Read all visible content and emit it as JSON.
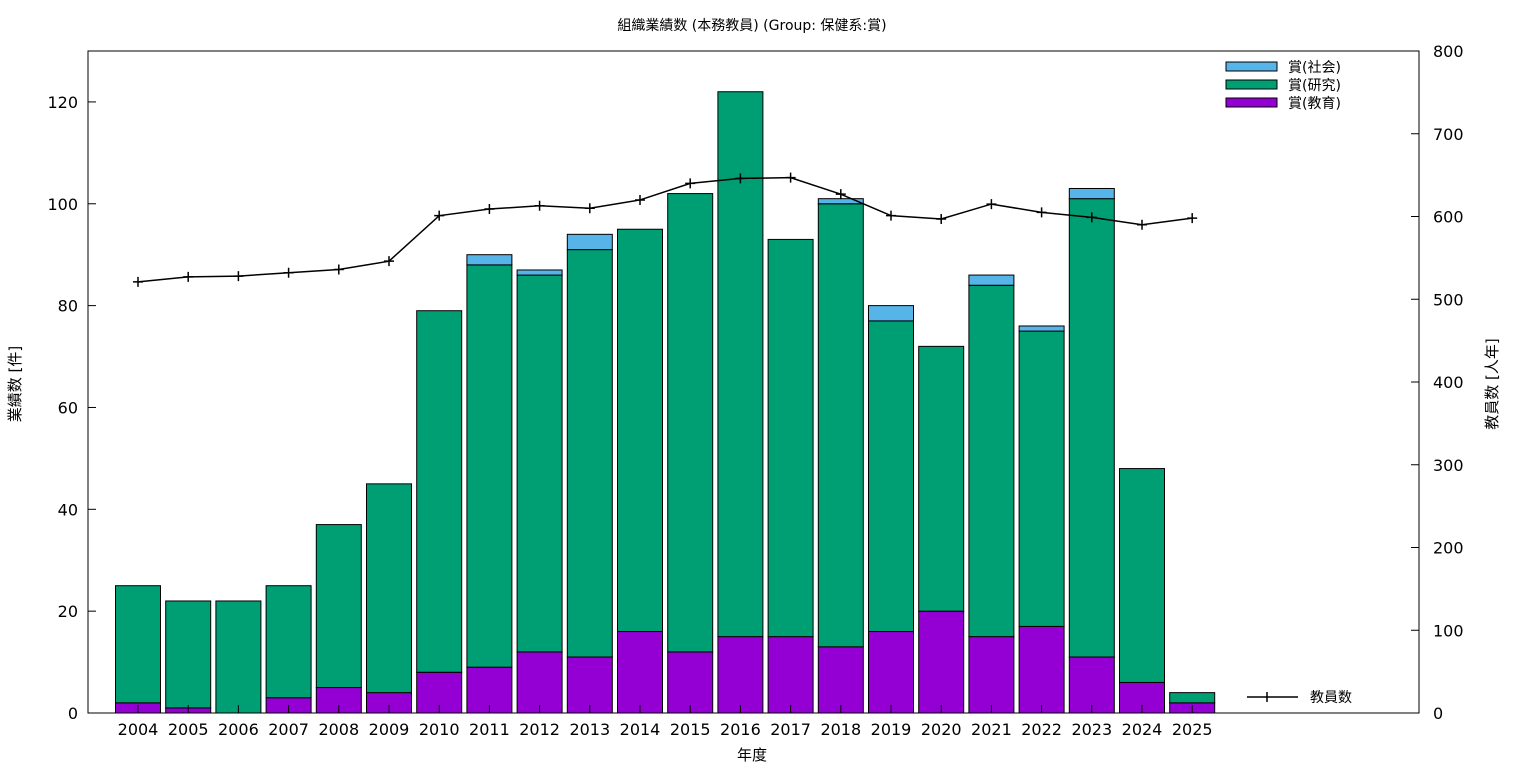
{
  "chart_data": {
    "type": "bar",
    "stacked": true,
    "title": "組織業績数 (本務教員) (Group: 保健系:賞)",
    "xlabel": "年度",
    "ylabel": "業績数 [件]",
    "y2label": "教員数 [人年]",
    "ylim": [
      0,
      130
    ],
    "y2lim": [
      0,
      800
    ],
    "yticks": [
      0,
      20,
      40,
      60,
      80,
      100,
      120
    ],
    "y2ticks": [
      0,
      100,
      200,
      300,
      400,
      500,
      600,
      700,
      800
    ],
    "categories": [
      "2004",
      "2005",
      "2006",
      "2007",
      "2008",
      "2009",
      "2010",
      "2011",
      "2012",
      "2013",
      "2014",
      "2015",
      "2016",
      "2017",
      "2018",
      "2019",
      "2020",
      "2021",
      "2022",
      "2023",
      "2024",
      "2025"
    ],
    "series": [
      {
        "name": "賞(教育)",
        "color": "#9400d3",
        "values": [
          2,
          1,
          0,
          3,
          5,
          4,
          8,
          9,
          12,
          11,
          16,
          12,
          15,
          15,
          13,
          16,
          20,
          15,
          17,
          11,
          6,
          2
        ]
      },
      {
        "name": "賞(研究)",
        "color": "#009e73",
        "values": [
          23,
          21,
          22,
          22,
          32,
          41,
          71,
          79,
          74,
          80,
          79,
          90,
          107,
          78,
          87,
          61,
          52,
          69,
          58,
          90,
          42,
          2
        ]
      },
      {
        "name": "賞(社会)",
        "color": "#56b4e9",
        "values": [
          0,
          0,
          0,
          0,
          0,
          0,
          0,
          2,
          1,
          3,
          0,
          0,
          0,
          0,
          1,
          3,
          0,
          2,
          1,
          2,
          0,
          0
        ]
      }
    ],
    "line_series": {
      "name": "教員数",
      "axis": "y2",
      "color": "#000000",
      "values": [
        521,
        527,
        528,
        532,
        536,
        546,
        601,
        609,
        613,
        610,
        620,
        640,
        646,
        647,
        627,
        601,
        597,
        615,
        605,
        599,
        590,
        598
      ]
    },
    "legend": {
      "bars_position": "top-right",
      "line_position": "bottom-right",
      "bar_order": [
        "賞(社会)",
        "賞(研究)",
        "賞(教育)"
      ]
    },
    "grid": false
  }
}
